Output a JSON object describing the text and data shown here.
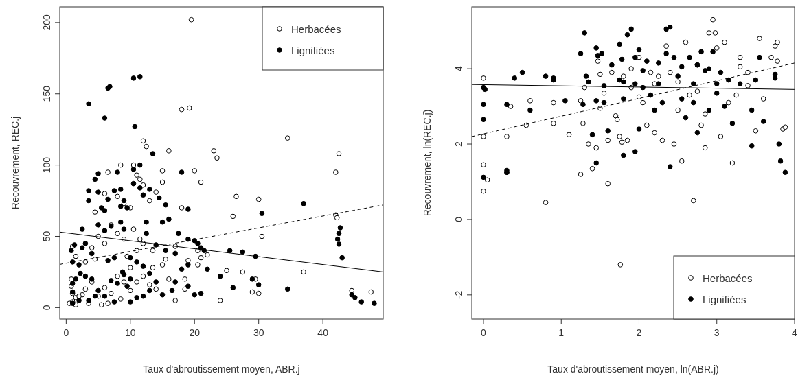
{
  "chart_data": [
    {
      "type": "scatter",
      "xlabel": "Taux d'abroutissement moyen, ABR.j",
      "ylabel": "Recouvrement, REC.j",
      "xlim": [
        -1,
        49.4
      ],
      "ylim": [
        -8,
        211
      ],
      "xticks": [
        0,
        10,
        20,
        30,
        40
      ],
      "yticks": [
        0,
        50,
        100,
        150,
        200
      ],
      "legend": "top right",
      "series": [
        {
          "name": "Herbacées",
          "color": "#ffffff",
          "marker": "circle",
          "x": [
            19.5,
            18,
            19.2,
            12,
            12.5,
            16,
            8.5,
            6.5,
            10.5,
            11,
            11.5,
            12,
            14,
            15,
            6,
            9,
            8,
            10,
            4.5,
            13,
            18,
            23,
            23.5,
            34.5,
            42.5,
            42,
            26.5,
            30,
            29.5,
            30.5,
            42,
            44.5,
            47.5,
            21,
            20,
            15,
            25,
            26,
            20.5,
            22,
            19,
            18.5,
            17,
            16,
            14,
            13,
            10.5,
            9,
            8,
            7,
            6,
            5,
            4,
            3,
            1,
            1.5,
            0.8,
            1,
            1.5,
            2.5,
            3,
            4,
            5,
            6,
            6.5,
            7,
            8,
            9,
            10,
            11,
            12,
            13.5,
            15,
            17,
            18.5,
            24,
            27.5,
            37,
            42.2,
            29,
            30,
            11,
            12,
            15.5,
            2,
            3.5,
            5.5,
            8.5,
            10,
            1.5,
            0.5,
            1,
            0.8,
            4.5,
            9.5,
            11.5,
            13.5,
            20.5,
            21
          ],
          "values": [
            202,
            139,
            140,
            117,
            113,
            110,
            100,
            95,
            100,
            93,
            90,
            86,
            81,
            88,
            80,
            73,
            78,
            70,
            67,
            75,
            70,
            110,
            105,
            119,
            108,
            95,
            78,
            76,
            20,
            50,
            65,
            12,
            11,
            88,
            96,
            96,
            26,
            64,
            40,
            37,
            33,
            20,
            43,
            20,
            13,
            16,
            55,
            48,
            52,
            58,
            45,
            50,
            42,
            32,
            43,
            36,
            20,
            10,
            7,
            9,
            13,
            18,
            8,
            14,
            3,
            10,
            22,
            18,
            12,
            18,
            22,
            28,
            30,
            5,
            13,
            5,
            25,
            25,
            63,
            11,
            10,
            40,
            45,
            34,
            8,
            3,
            2,
            6,
            28,
            2,
            3,
            4,
            15,
            34,
            36,
            48,
            40,
            30,
            35
          ]
        },
        {
          "name": "Lignifiées",
          "color": "#000000",
          "marker": "circle",
          "x": [
            3.5,
            6,
            6.5,
            6.8,
            10.5,
            11.5,
            10.7,
            13.5,
            11.5,
            10.5,
            5,
            8,
            4.5,
            3.5,
            5,
            7.5,
            8.5,
            10.5,
            11.5,
            12,
            13,
            3.5,
            6.5,
            9,
            8.5,
            5.5,
            6,
            9.5,
            15.5,
            14.5,
            16,
            15,
            12.5,
            8.5,
            5,
            6,
            7,
            9,
            2.5,
            12.5,
            18,
            19,
            17.5,
            20,
            20.5,
            21.5,
            19,
            25.5,
            27.5,
            29.5,
            30.5,
            37,
            42.5,
            42.3,
            42.5,
            42.7,
            43,
            34.5,
            29,
            30,
            26,
            24,
            22,
            21,
            18,
            17,
            16.5,
            14,
            13,
            12,
            11,
            10,
            9,
            9.5,
            8,
            7,
            6,
            5,
            4,
            3,
            2,
            1,
            1.5,
            1,
            1,
            2,
            3.5,
            4.5,
            7.5,
            10,
            11,
            12,
            13,
            15,
            20,
            19,
            21,
            45,
            46,
            48,
            44.5,
            1,
            2.2,
            1.3,
            0.8,
            2.5,
            3,
            4,
            6.5,
            7.5,
            8.8,
            10,
            14,
            15.5,
            17,
            19
          ],
          "values": [
            143,
            133,
            154,
            155,
            161,
            162,
            127,
            108,
            100,
            97,
            94,
            95,
            90,
            82,
            81,
            82,
            83,
            87,
            84,
            79,
            83,
            75,
            76,
            75,
            71,
            70,
            68,
            70,
            72,
            77,
            62,
            60,
            60,
            60,
            58,
            54,
            57,
            55,
            55,
            52,
            95,
            69,
            52,
            47,
            45,
            40,
            48,
            40,
            39,
            36,
            66,
            73,
            52,
            48,
            44.5,
            56,
            35,
            13,
            20,
            16,
            14,
            22,
            27,
            42,
            27,
            18,
            12,
            18,
            24,
            29,
            32,
            35,
            23,
            15,
            17,
            19,
            8,
            12,
            20,
            22,
            30,
            32,
            20,
            11,
            3,
            5,
            5,
            8,
            4,
            4,
            7,
            8,
            12,
            9,
            9,
            15,
            10,
            7,
            4,
            3,
            9,
            17,
            24,
            44,
            40,
            42,
            45,
            38,
            33,
            35,
            25,
            20,
            44,
            40,
            38,
            30
          ]
        },
        {
          "type": "line",
          "line_style": "solid",
          "color": "#000000",
          "x": [
            -1,
            49.4
          ],
          "values": [
            53,
            25
          ]
        },
        {
          "type": "line",
          "line_style": "dashed",
          "color": "#000000",
          "x": [
            -1,
            49.4
          ],
          "values": [
            30.3,
            72
          ]
        }
      ]
    },
    {
      "type": "scatter",
      "xlabel": "Taux d'abroutissement moyen, ln(ABR.j)",
      "ylabel": "Recouvrement, ln(REC.j)",
      "xlim": [
        -0.15,
        4.0
      ],
      "ylim": [
        -2.64,
        5.64
      ],
      "xticks": [
        0,
        1,
        2,
        3,
        4
      ],
      "yticks": [
        -2,
        0,
        2,
        4
      ],
      "legend": "bottom right",
      "series": [
        {
          "name": "Herbacées",
          "color": "#ffffff",
          "marker": "circle",
          "x": [
            0,
            0,
            0,
            0,
            0.05,
            0.3,
            0.3,
            0.35,
            0.55,
            0.6,
            0.8,
            0.9,
            0.9,
            1.1,
            1.25,
            1.25,
            1.28,
            1.3,
            1.35,
            1.4,
            1.45,
            1.47,
            1.5,
            1.5,
            1.55,
            1.6,
            1.6,
            1.65,
            1.7,
            1.72,
            1.75,
            1.76,
            1.78,
            1.8,
            1.85,
            1.9,
            1.9,
            2.0,
            2.05,
            2.1,
            2.15,
            2.2,
            2.25,
            2.3,
            2.35,
            2.4,
            2.45,
            2.5,
            2.55,
            2.6,
            2.65,
            2.7,
            2.75,
            2.8,
            2.85,
            2.9,
            2.95,
            2.98,
            3.0,
            3.05,
            3.1,
            3.15,
            3.2,
            3.3,
            3.4,
            3.5,
            3.55,
            3.6,
            3.7,
            3.75,
            3.78,
            3.78,
            3.85,
            3.88,
            3.3,
            3.4,
            2.0,
            2.2,
            2.5,
            2.75,
            2.85,
            3.25
          ],
          "values": [
            3.75,
            2.2,
            1.45,
            0.75,
            1.05,
            2.2,
            1.25,
            3.0,
            2.5,
            3.15,
            0.45,
            3.1,
            2.55,
            2.25,
            3.15,
            1.2,
            2.55,
            3.5,
            2.0,
            1.35,
            1.9,
            4.2,
            3.85,
            2.95,
            3.35,
            2.1,
            0.95,
            3.9,
            2.75,
            2.65,
            2.2,
            -1.2,
            2.05,
            3.8,
            2.1,
            4.0,
            3.5,
            4.3,
            3.1,
            2.5,
            3.9,
            2.3,
            3.8,
            2.1,
            4.6,
            3.9,
            2.0,
            2.9,
            1.55,
            4.7,
            3.3,
            0.5,
            4.1,
            2.5,
            1.9,
            4.95,
            5.3,
            4.95,
            4.55,
            2.2,
            4.7,
            3.1,
            1.5,
            4.3,
            3.9,
            2.35,
            4.8,
            3.2,
            4.3,
            4.6,
            4.7,
            4.2,
            2.4,
            2.45,
            4.05,
            3.55,
            3.25,
            3.6,
            3.65,
            3.4,
            2.8,
            3.3
          ]
        },
        {
          "name": "Lignifiées",
          "color": "#000000",
          "marker": "circle",
          "x": [
            0,
            0.02,
            0,
            0,
            0,
            0.3,
            0.3,
            0.3,
            0.4,
            0.5,
            0.6,
            0.8,
            0.9,
            0.9,
            1.05,
            1.25,
            1.3,
            1.28,
            1.32,
            1.35,
            1.45,
            1.47,
            1.45,
            1.4,
            1.45,
            1.52,
            1.55,
            1.55,
            1.6,
            1.65,
            1.75,
            1.75,
            1.78,
            1.8,
            1.8,
            1.8,
            1.85,
            1.9,
            1.95,
            2.0,
            2.05,
            2.1,
            2.15,
            2.2,
            2.25,
            2.3,
            2.35,
            2.4,
            2.35,
            2.4,
            2.45,
            2.5,
            2.55,
            2.6,
            2.65,
            2.7,
            2.75,
            2.8,
            2.85,
            2.9,
            2.95,
            3.0,
            3.05,
            3.1,
            3.15,
            3.2,
            3.3,
            3.45,
            3.5,
            3.55,
            3.6,
            3.75,
            3.75,
            3.8,
            3.82,
            3.88,
            3.45,
            2.0,
            1.95,
            2.25,
            2.55,
            2.05,
            1.95,
            3.0,
            2.7,
            2.9,
            2.75
          ],
          "values": [
            3.5,
            3.45,
            3.05,
            2.65,
            1.12,
            1.3,
            1.25,
            3.05,
            3.75,
            3.9,
            2.9,
            3.8,
            3.7,
            3.75,
            3.15,
            4.4,
            4.95,
            3.05,
            3.8,
            3.65,
            4.55,
            4.35,
            3.15,
            2.25,
            1.5,
            4.4,
            3.1,
            3.55,
            2.35,
            4.1,
            3.7,
            4.65,
            4.25,
            3.2,
            1.7,
            3.65,
            4.9,
            5.05,
            3.6,
            4.5,
            3.5,
            4.2,
            3.3,
            2.9,
            4.15,
            3.1,
            5.05,
            5.1,
            4.4,
            1.4,
            4.3,
            3.8,
            3.2,
            2.7,
            4.3,
            3.1,
            2.3,
            4.45,
            3.95,
            2.9,
            4.45,
            3.6,
            3.9,
            3.0,
            3.7,
            2.55,
            3.6,
            2.9,
            3.7,
            4.3,
            2.6,
            3.85,
            3.75,
            2.0,
            1.55,
            1.25,
            1.95,
            2.4,
            1.8,
            3.6,
            4.05,
            3.95,
            4.3,
            3.35,
            3.6,
            4.0,
            4.1
          ]
        },
        {
          "type": "line",
          "line_style": "solid",
          "color": "#000000",
          "x": [
            -0.15,
            4.0
          ],
          "values": [
            3.58,
            3.45
          ]
        },
        {
          "type": "line",
          "line_style": "dashed",
          "color": "#000000",
          "x": [
            -0.15,
            4.0
          ],
          "values": [
            2.2,
            4.15
          ]
        }
      ]
    }
  ]
}
